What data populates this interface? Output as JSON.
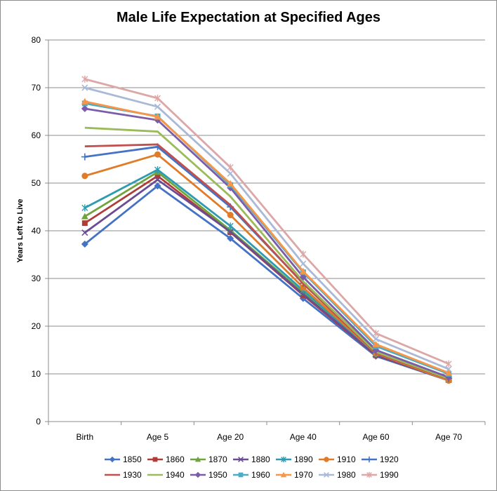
{
  "chart_data": {
    "type": "line",
    "title": "Male Life Expectation at Specified Ages",
    "xlabel": "",
    "ylabel": "Years Left to Live",
    "ylim": [
      0,
      80
    ],
    "yticks": [
      "0",
      "10",
      "20",
      "30",
      "40",
      "50",
      "60",
      "70",
      "80"
    ],
    "grid": true,
    "legend": "bottom",
    "categories": [
      "Birth",
      "Age 5",
      "Age 20",
      "Age 40",
      "Age 60",
      "Age 70"
    ],
    "series": [
      {
        "name": "1850",
        "color": "#4472c4",
        "marker": "diamond",
        "values": [
          37.2,
          49.4,
          38.4,
          25.8,
          13.7,
          8.6
        ]
      },
      {
        "name": "1860",
        "color": "#b03c3a",
        "marker": "square",
        "values": [
          41.6,
          51.5,
          39.7,
          26.5,
          13.9,
          8.7
        ]
      },
      {
        "name": "1870",
        "color": "#6fa33b",
        "marker": "triangle",
        "values": [
          43.0,
          52.3,
          40.1,
          27.0,
          14.1,
          8.8
        ]
      },
      {
        "name": "1880",
        "color": "#6a4c93",
        "marker": "x",
        "values": [
          39.6,
          50.7,
          39.8,
          26.7,
          14.0,
          8.8
        ]
      },
      {
        "name": "1890",
        "color": "#2e9bb0",
        "marker": "asterisk",
        "values": [
          44.8,
          52.8,
          41.0,
          27.5,
          14.3,
          9.0
        ]
      },
      {
        "name": "1910",
        "color": "#e07b27",
        "marker": "circle",
        "values": [
          51.5,
          56.0,
          43.3,
          28.1,
          14.3,
          8.6
        ]
      },
      {
        "name": "1920",
        "color": "#4472c4",
        "marker": "plus",
        "values": [
          55.5,
          57.6,
          45.0,
          29.0,
          14.5,
          9.0
        ]
      },
      {
        "name": "1930",
        "color": "#c0504d",
        "marker": "none",
        "values": [
          57.7,
          58.1,
          45.4,
          28.9,
          14.4,
          8.9
        ]
      },
      {
        "name": "1940",
        "color": "#9bbb59",
        "marker": "none",
        "values": [
          61.6,
          60.8,
          47.2,
          29.4,
          14.6,
          9.0
        ]
      },
      {
        "name": "1950",
        "color": "#7b5ca8",
        "marker": "diamond",
        "values": [
          65.6,
          63.2,
          49.0,
          30.3,
          15.0,
          9.3
        ]
      },
      {
        "name": "1960",
        "color": "#4bacc6",
        "marker": "square",
        "values": [
          66.7,
          64.0,
          49.6,
          31.3,
          15.8,
          10.0
        ]
      },
      {
        "name": "1970",
        "color": "#f79646",
        "marker": "triangle",
        "values": [
          67.1,
          63.9,
          49.9,
          31.5,
          16.2,
          10.2
        ]
      },
      {
        "name": "1980",
        "color": "#aab9d8",
        "marker": "x",
        "values": [
          70.0,
          66.0,
          52.0,
          33.1,
          17.3,
          11.0
        ]
      },
      {
        "name": "1990",
        "color": "#dca7a6",
        "marker": "asterisk",
        "values": [
          71.8,
          67.8,
          53.3,
          35.1,
          18.5,
          12.1
        ]
      }
    ]
  }
}
